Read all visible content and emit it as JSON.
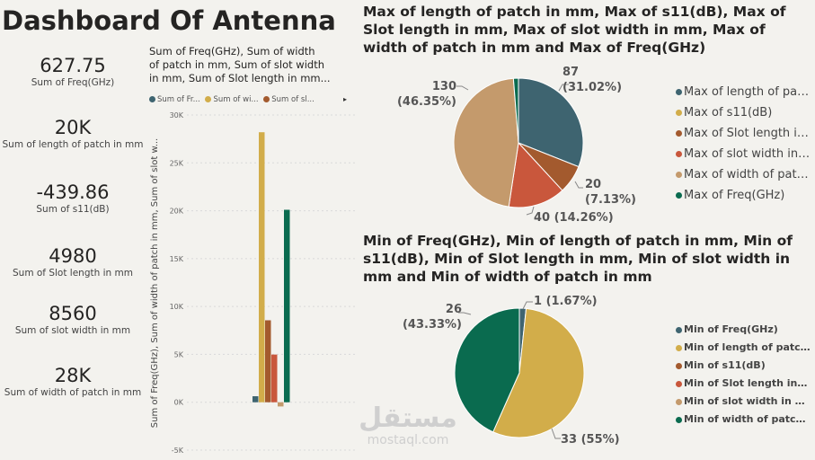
{
  "title": "Dashboard Of Antenna",
  "cards": [
    {
      "value": "627.75",
      "label": "Sum of Freq(GHz)"
    },
    {
      "value": "20K",
      "label": "Sum of length of patch in mm"
    },
    {
      "value": "-439.86",
      "label": "Sum of s11(dB)"
    },
    {
      "value": "4980",
      "label": "Sum of Slot length in mm"
    },
    {
      "value": "8560",
      "label": "Sum of slot width in mm"
    },
    {
      "value": "28K",
      "label": "Sum of width of patch in mm"
    }
  ],
  "bar_chart": {
    "title_lines": [
      "Sum of Freq(GHz), Sum of width",
      "of patch in mm, Sum of slot width",
      "in mm, Sum of Slot length in mm..."
    ],
    "legend": [
      {
        "label": "Sum of Fr...",
        "color": "#3e6470"
      },
      {
        "label": "Sum of wi...",
        "color": "#d2ad4a"
      },
      {
        "label": "Sum of sl...",
        "color": "#a35a2e"
      }
    ],
    "legend_arrow": "▸",
    "ylabel": "Sum of Freq(GHz), Sum of width of patch in mm, Sum of slot w...",
    "ticks": [
      "30K",
      "25K",
      "20K",
      "15K",
      "10K",
      "5K",
      "0K",
      "-5K"
    ]
  },
  "pie_top": {
    "title": "Max of length of patch in mm, Max of s11(dB), Max of Slot length in mm, Max of slot width in mm, Max of width of patch in mm and Max of Freq(GHz)",
    "legend": [
      {
        "label": "Max of length of patch in mm",
        "color": "#3e6470"
      },
      {
        "label": "Max of s11(dB)",
        "color": "#d2ad4a"
      },
      {
        "label": "Max of Slot length in mm",
        "color": "#a35a2e"
      },
      {
        "label": "Max of slot width in mm",
        "color": "#c9573c"
      },
      {
        "label": "Max of width of patch in mm",
        "color": "#c49a6c"
      },
      {
        "label": "Max of Freq(GHz)",
        "color": "#0a6b4f"
      }
    ],
    "labels": {
      "a": "87",
      "a2": "(31.02%)",
      "b": "20",
      "b2": "(7.13%)",
      "c": "40 (14.26%)",
      "d": "130",
      "d2": "(46.35%)"
    }
  },
  "pie_bottom": {
    "title": "Min of Freq(GHz), Min of length of patch in mm, Min of s11(dB), Min of Slot length in mm, Min of slot width in mm and Min of width of patch in mm",
    "legend": [
      {
        "label": "Min of Freq(GHz)",
        "color": "#3e6470"
      },
      {
        "label": "Min of length of patch in mm",
        "color": "#d2ad4a"
      },
      {
        "label": "Min of s11(dB)",
        "color": "#a35a2e"
      },
      {
        "label": "Min of Slot length in mm",
        "color": "#c9573c"
      },
      {
        "label": "Min of slot width in mm",
        "color": "#c49a6c"
      },
      {
        "label": "Min of width of patch in mm",
        "color": "#0a6b4f"
      }
    ],
    "labels": {
      "a": "1 (1.67%)",
      "b": "33 (55%)",
      "c": "26",
      "c2": "(43.33%)"
    }
  },
  "chart_data": [
    {
      "type": "bar",
      "title": "Sum of Freq(GHz), Sum of width of patch in mm, Sum of slot width in mm, Sum of Slot length in mm...",
      "ylabel": "Sum of Freq(GHz), Sum of width of patch in mm, Sum of slot w...",
      "ylim": [
        -5000,
        30000
      ],
      "grid": true,
      "legend_position": "top",
      "series": [
        {
          "name": "Sum of Fr...",
          "values": [
            627.75
          ],
          "color": "#3e6470"
        },
        {
          "name": "Sum of wi...",
          "values": [
            28200
          ],
          "color": "#d2ad4a"
        },
        {
          "name": "Sum of sl...",
          "values": [
            8560
          ],
          "color": "#a35a2e"
        },
        {
          "values": [
            4980
          ],
          "color": "#c9573c"
        },
        {
          "values": [
            -439.86
          ],
          "color": "#c49a6c"
        },
        {
          "values": [
            20100
          ],
          "color": "#0a6b4f"
        }
      ]
    },
    {
      "type": "pie",
      "title": "Max of length of patch in mm, Max of s11(dB), Max of Slot length in mm, Max of slot width in mm, Max of width of patch in mm and Max of Freq(GHz)",
      "legend_position": "right",
      "categories": [
        "Max of length of patch in mm",
        "Max of s11(dB)",
        "Max of Slot length in mm",
        "Max of slot width in mm",
        "Max of width of patch in mm",
        "Max of Freq(GHz)"
      ],
      "values": [
        87,
        0,
        20,
        40,
        130,
        3.5
      ],
      "percentages": [
        31.02,
        0,
        7.13,
        14.26,
        46.35,
        1.24
      ]
    },
    {
      "type": "pie",
      "title": "Min of Freq(GHz), Min of length of patch in mm, Min of s11(dB), Min of Slot length in mm, Min of slot width in mm and Min of width of patch in mm",
      "legend_position": "right",
      "categories": [
        "Min of Freq(GHz)",
        "Min of length of patch in mm",
        "Min of s11(dB)",
        "Min of Slot length in mm",
        "Min of slot width in mm",
        "Min of width of patch in mm"
      ],
      "values": [
        1,
        33,
        0,
        0,
        0,
        26
      ],
      "percentages": [
        1.67,
        55,
        0,
        0,
        0,
        43.33
      ]
    }
  ],
  "watermark": {
    "arabic": "مستقل",
    "latin": "mostaql.com"
  }
}
